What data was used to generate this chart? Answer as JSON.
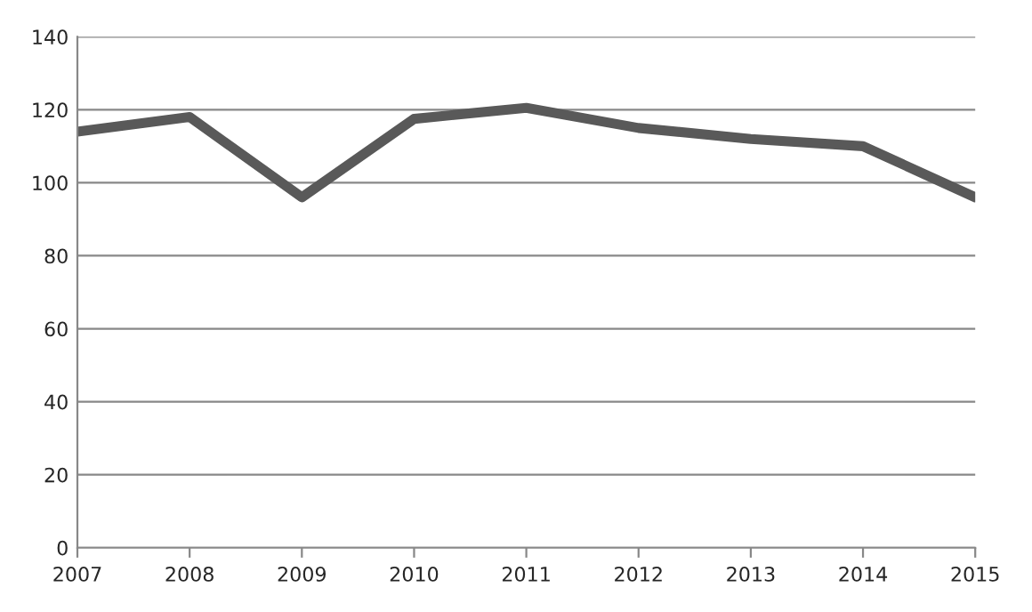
{
  "chart_data": {
    "type": "line",
    "categories": [
      "2007",
      "2008",
      "2009",
      "2010",
      "2011",
      "2012",
      "2013",
      "2014",
      "2015"
    ],
    "series": [
      {
        "color": "#595959",
        "values": [
          114,
          118,
          96,
          117.5,
          120.5,
          115,
          112,
          110,
          96
        ]
      }
    ],
    "ylim": [
      0,
      140
    ],
    "yticks": [
      0,
      20,
      40,
      60,
      80,
      100,
      120,
      140
    ],
    "grid": "y",
    "marker": "none",
    "line_style": "solid"
  }
}
